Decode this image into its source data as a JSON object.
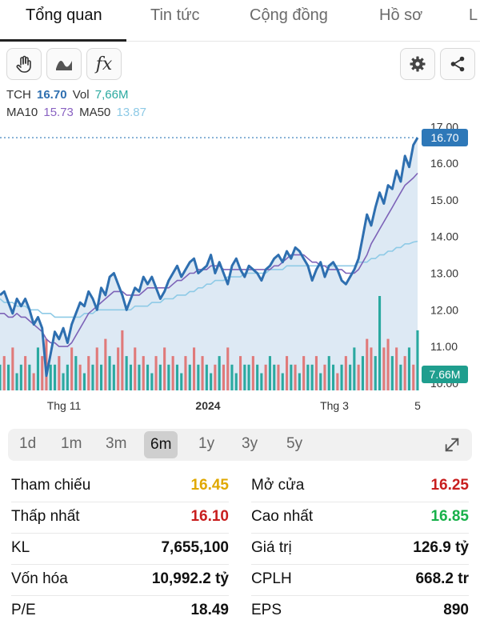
{
  "tabs": [
    {
      "label": "Tổng quan",
      "active": true
    },
    {
      "label": "Tin tức"
    },
    {
      "label": "Cộng đồng"
    },
    {
      "label": "Hồ sơ"
    },
    {
      "label": "L"
    }
  ],
  "toolbar": {
    "left_icons": [
      "hand-icon",
      "wave-line-icon",
      "fx-icon"
    ],
    "fx_label": "fx",
    "right_icons": [
      "gear-icon",
      "share-icon"
    ]
  },
  "legend": {
    "ticker": "TCH",
    "price": "16.70",
    "vol_label": "Vol",
    "vol": "7,66M",
    "ma10_label": "MA10",
    "ma10": "15.73",
    "ma50_label": "MA50",
    "ma50": "13.87"
  },
  "chart_data": {
    "type": "line",
    "y_ticks": [
      "17.00",
      "16.00",
      "15.00",
      "14.00",
      "13.00",
      "12.00",
      "11.00",
      "10.00"
    ],
    "ylim": [
      9.8,
      17.4
    ],
    "x_ticks": [
      "Thg 11",
      "2024",
      "Thg 3",
      "5"
    ],
    "price": [
      12.4,
      12.5,
      12.2,
      11.9,
      12.3,
      12.1,
      12.3,
      12.0,
      11.6,
      11.8,
      11.5,
      10.2,
      10.8,
      11.4,
      11.2,
      11.5,
      11.1,
      11.6,
      11.9,
      12.2,
      12.1,
      12.5,
      12.3,
      12.0,
      12.6,
      12.4,
      12.9,
      13.0,
      12.7,
      12.4,
      12.0,
      12.3,
      12.6,
      12.5,
      12.9,
      12.7,
      12.9,
      12.6,
      12.3,
      12.5,
      12.8,
      13.0,
      13.2,
      12.9,
      13.1,
      13.3,
      13.4,
      13.0,
      13.1,
      13.2,
      13.5,
      13.0,
      13.3,
      13.0,
      12.7,
      13.2,
      13.4,
      13.1,
      12.9,
      13.2,
      13.1,
      13.0,
      12.8,
      13.1,
      13.2,
      13.4,
      13.5,
      13.3,
      13.6,
      13.4,
      13.7,
      13.6,
      13.4,
      13.2,
      12.8,
      13.1,
      13.3,
      12.9,
      13.2,
      13.3,
      13.1,
      12.8,
      12.7,
      12.9,
      13.1,
      13.4,
      14.0,
      14.6,
      14.3,
      14.8,
      15.2,
      14.9,
      15.4,
      15.3,
      15.8,
      15.5,
      16.2,
      15.9,
      16.5,
      16.7
    ],
    "ma10": [
      11.9,
      11.9,
      11.8,
      11.8,
      11.9,
      11.8,
      11.8,
      11.7,
      11.6,
      11.5,
      11.4,
      11.2,
      11.1,
      11.1,
      11.0,
      11.0,
      11.0,
      11.1,
      11.3,
      11.5,
      11.7,
      11.9,
      12.0,
      12.1,
      12.2,
      12.3,
      12.4,
      12.5,
      12.5,
      12.5,
      12.4,
      12.4,
      12.4,
      12.4,
      12.5,
      12.6,
      12.6,
      12.6,
      12.6,
      12.6,
      12.6,
      12.7,
      12.8,
      12.8,
      12.9,
      13.0,
      13.0,
      13.1,
      13.1,
      13.1,
      13.2,
      13.2,
      13.2,
      13.1,
      13.1,
      13.1,
      13.1,
      13.1,
      13.1,
      13.1,
      13.1,
      13.1,
      13.1,
      13.1,
      13.1,
      13.2,
      13.2,
      13.3,
      13.4,
      13.5,
      13.5,
      13.5,
      13.5,
      13.4,
      13.3,
      13.3,
      13.2,
      13.2,
      13.1,
      13.1,
      13.1,
      13.1,
      13.0,
      13.0,
      13.0,
      13.1,
      13.3,
      13.5,
      13.8,
      14.0,
      14.2,
      14.4,
      14.6,
      14.8,
      15.0,
      15.2,
      15.4,
      15.5,
      15.6,
      15.73
    ],
    "ma50": [
      12.3,
      12.2,
      12.2,
      12.2,
      12.1,
      12.1,
      12.1,
      12.0,
      12.0,
      12.0,
      11.9,
      11.9,
      11.9,
      11.8,
      11.8,
      11.8,
      11.8,
      11.8,
      11.8,
      11.8,
      11.9,
      11.9,
      11.9,
      12.0,
      12.0,
      12.0,
      12.0,
      12.0,
      12.0,
      12.0,
      12.0,
      12.0,
      12.1,
      12.1,
      12.1,
      12.1,
      12.2,
      12.2,
      12.2,
      12.3,
      12.3,
      12.3,
      12.4,
      12.4,
      12.4,
      12.5,
      12.5,
      12.6,
      12.6,
      12.7,
      12.7,
      12.8,
      12.8,
      12.8,
      12.9,
      12.9,
      12.9,
      12.9,
      13.0,
      13.0,
      13.0,
      13.0,
      13.0,
      13.0,
      13.1,
      13.1,
      13.1,
      13.1,
      13.2,
      13.2,
      13.2,
      13.2,
      13.2,
      13.2,
      13.2,
      13.2,
      13.2,
      13.2,
      13.2,
      13.2,
      13.2,
      13.2,
      13.2,
      13.2,
      13.2,
      13.3,
      13.3,
      13.3,
      13.4,
      13.4,
      13.5,
      13.5,
      13.6,
      13.6,
      13.7,
      13.7,
      13.8,
      13.8,
      13.85,
      13.87
    ],
    "volume": [
      3,
      4,
      3,
      5,
      2,
      3,
      4,
      3,
      2,
      5,
      4,
      6,
      3,
      3,
      4,
      2,
      3,
      5,
      4,
      3,
      2,
      4,
      3,
      5,
      3,
      6,
      4,
      3,
      5,
      7,
      4,
      3,
      5,
      3,
      4,
      3,
      2,
      4,
      3,
      5,
      3,
      4,
      3,
      2,
      4,
      3,
      5,
      3,
      4,
      3,
      2,
      3,
      4,
      3,
      5,
      3,
      2,
      4,
      3,
      3,
      4,
      3,
      2,
      3,
      4,
      3,
      3,
      2,
      4,
      3,
      3,
      2,
      4,
      3,
      3,
      4,
      2,
      3,
      4,
      3,
      2,
      3,
      4,
      3,
      5,
      3,
      4,
      6,
      5,
      4,
      11,
      5,
      6,
      4,
      5,
      3,
      4,
      5,
      3,
      7
    ],
    "volume_colors": [
      "g",
      "r",
      "g",
      "r",
      "g",
      "g",
      "r",
      "g",
      "r",
      "g",
      "r",
      "r",
      "g",
      "g",
      "r",
      "g",
      "g",
      "r",
      "g",
      "r",
      "g",
      "r",
      "g",
      "r",
      "g",
      "r",
      "g",
      "g",
      "r",
      "r",
      "g",
      "g",
      "r",
      "g",
      "r",
      "g",
      "g",
      "r",
      "g",
      "r",
      "g",
      "r",
      "g",
      "g",
      "r",
      "g",
      "r",
      "g",
      "r",
      "g",
      "g",
      "r",
      "g",
      "r",
      "r",
      "g",
      "g",
      "r",
      "g",
      "g",
      "r",
      "g",
      "g",
      "r",
      "g",
      "g",
      "r",
      "g",
      "r",
      "g",
      "r",
      "g",
      "r",
      "g",
      "g",
      "r",
      "g",
      "r",
      "g",
      "g",
      "r",
      "g",
      "r",
      "g",
      "g",
      "r",
      "g",
      "r",
      "r",
      "g",
      "g",
      "r",
      "r",
      "g",
      "r",
      "g",
      "r",
      "g",
      "r",
      "g"
    ],
    "last_price_label": "16.70",
    "last_vol_label": "7.66M",
    "colors": {
      "price": "#2e6fb0",
      "ma10": "#7d63b8",
      "ma50": "#8ecae6",
      "fill": "#cfe0f0",
      "up": "#2aa9a0",
      "down": "#e07a7a",
      "badge_price": "#2e78b8",
      "badge_vol": "#1f9e8e"
    }
  },
  "periods": [
    {
      "label": "1d"
    },
    {
      "label": "1m"
    },
    {
      "label": "3m"
    },
    {
      "label": "6m",
      "active": true
    },
    {
      "label": "1y"
    },
    {
      "label": "3y"
    },
    {
      "label": "5y"
    }
  ],
  "stats_left": [
    {
      "label": "Tham chiếu",
      "value": "16.45",
      "color": "yellow"
    },
    {
      "label": "Thấp nhất",
      "value": "16.10",
      "color": "red"
    },
    {
      "label": "KL",
      "value": "7,655,100"
    },
    {
      "label": "Vốn hóa",
      "value": "10,992.2 tỷ"
    },
    {
      "label": "P/E",
      "value": "18.49"
    }
  ],
  "stats_right": [
    {
      "label": "Mở cửa",
      "value": "16.25",
      "color": "red"
    },
    {
      "label": "Cao nhất",
      "value": "16.85",
      "color": "green"
    },
    {
      "label": "Giá trị",
      "value": "126.9 tỷ"
    },
    {
      "label": "CPLH",
      "value": "668.2 tr"
    },
    {
      "label": "EPS",
      "value": "890"
    }
  ]
}
